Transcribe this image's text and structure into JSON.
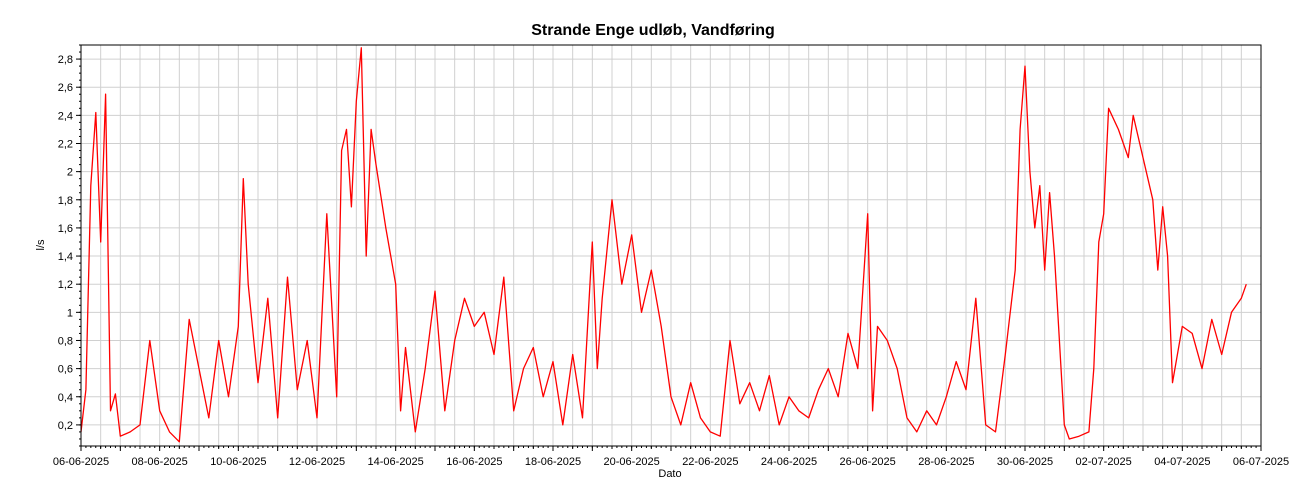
{
  "chart_data": {
    "type": "line",
    "title": "Strande Enge udløb, Vandføring",
    "xlabel": "Dato",
    "ylabel": "l/s",
    "ylim": [
      0.05,
      2.9
    ],
    "xlim": [
      "2025-06-06",
      "2025-07-06"
    ],
    "y_ticks": [
      "0,2",
      "0,4",
      "0,6",
      "0,8",
      "1",
      "1,2",
      "1,4",
      "1,6",
      "1,8",
      "2",
      "2,2",
      "2,4",
      "2,6",
      "2,8"
    ],
    "y_tick_values": [
      0.2,
      0.4,
      0.6,
      0.8,
      1.0,
      1.2,
      1.4,
      1.6,
      1.8,
      2.0,
      2.2,
      2.4,
      2.6,
      2.8
    ],
    "x_ticks": [
      "06-06-2025",
      "08-06-2025",
      "10-06-2025",
      "12-06-2025",
      "14-06-2025",
      "16-06-2025",
      "18-06-2025",
      "20-06-2025",
      "22-06-2025",
      "24-06-2025",
      "26-06-2025",
      "28-06-2025",
      "30-06-2025",
      "02-07-2025",
      "04-07-2025",
      "06-07-2025"
    ],
    "grid": true,
    "series": [
      {
        "color": "#ff0000",
        "points": [
          [
            "2025-06-06 00:00",
            0.15
          ],
          [
            "2025-06-06 03:00",
            0.45
          ],
          [
            "2025-06-06 06:00",
            1.9
          ],
          [
            "2025-06-06 09:00",
            2.42
          ],
          [
            "2025-06-06 12:00",
            1.5
          ],
          [
            "2025-06-06 15:00",
            2.55
          ],
          [
            "2025-06-06 18:00",
            0.3
          ],
          [
            "2025-06-06 21:00",
            0.42
          ],
          [
            "2025-06-07 00:00",
            0.12
          ],
          [
            "2025-06-07 06:00",
            0.15
          ],
          [
            "2025-06-07 12:00",
            0.2
          ],
          [
            "2025-06-07 18:00",
            0.8
          ],
          [
            "2025-06-08 00:00",
            0.3
          ],
          [
            "2025-06-08 06:00",
            0.15
          ],
          [
            "2025-06-08 12:00",
            0.08
          ],
          [
            "2025-06-08 18:00",
            0.95
          ],
          [
            "2025-06-09 00:00",
            0.6
          ],
          [
            "2025-06-09 06:00",
            0.25
          ],
          [
            "2025-06-09 12:00",
            0.8
          ],
          [
            "2025-06-09 18:00",
            0.4
          ],
          [
            "2025-06-10 00:00",
            0.9
          ],
          [
            "2025-06-10 03:00",
            1.95
          ],
          [
            "2025-06-10 06:00",
            1.2
          ],
          [
            "2025-06-10 12:00",
            0.5
          ],
          [
            "2025-06-10 18:00",
            1.1
          ],
          [
            "2025-06-11 00:00",
            0.25
          ],
          [
            "2025-06-11 06:00",
            1.25
          ],
          [
            "2025-06-11 12:00",
            0.45
          ],
          [
            "2025-06-11 18:00",
            0.8
          ],
          [
            "2025-06-12 00:00",
            0.25
          ],
          [
            "2025-06-12 06:00",
            1.7
          ],
          [
            "2025-06-12 12:00",
            0.4
          ],
          [
            "2025-06-12 15:00",
            2.15
          ],
          [
            "2025-06-12 18:00",
            2.3
          ],
          [
            "2025-06-12 21:00",
            1.75
          ],
          [
            "2025-06-13 00:00",
            2.5
          ],
          [
            "2025-06-13 03:00",
            2.88
          ],
          [
            "2025-06-13 06:00",
            1.4
          ],
          [
            "2025-06-13 09:00",
            2.3
          ],
          [
            "2025-06-13 12:00",
            2.05
          ],
          [
            "2025-06-13 18:00",
            1.6
          ],
          [
            "2025-06-14 00:00",
            1.2
          ],
          [
            "2025-06-14 03:00",
            0.3
          ],
          [
            "2025-06-14 06:00",
            0.75
          ],
          [
            "2025-06-14 12:00",
            0.15
          ],
          [
            "2025-06-14 18:00",
            0.6
          ],
          [
            "2025-06-15 00:00",
            1.15
          ],
          [
            "2025-06-15 06:00",
            0.3
          ],
          [
            "2025-06-15 12:00",
            0.8
          ],
          [
            "2025-06-15 18:00",
            1.1
          ],
          [
            "2025-06-16 00:00",
            0.9
          ],
          [
            "2025-06-16 06:00",
            1.0
          ],
          [
            "2025-06-16 12:00",
            0.7
          ],
          [
            "2025-06-16 18:00",
            1.25
          ],
          [
            "2025-06-17 00:00",
            0.3
          ],
          [
            "2025-06-17 06:00",
            0.6
          ],
          [
            "2025-06-17 12:00",
            0.75
          ],
          [
            "2025-06-17 18:00",
            0.4
          ],
          [
            "2025-06-18 00:00",
            0.65
          ],
          [
            "2025-06-18 06:00",
            0.2
          ],
          [
            "2025-06-18 12:00",
            0.7
          ],
          [
            "2025-06-18 18:00",
            0.25
          ],
          [
            "2025-06-19 00:00",
            1.5
          ],
          [
            "2025-06-19 03:00",
            0.6
          ],
          [
            "2025-06-19 06:00",
            1.1
          ],
          [
            "2025-06-19 12:00",
            1.8
          ],
          [
            "2025-06-19 18:00",
            1.2
          ],
          [
            "2025-06-20 00:00",
            1.55
          ],
          [
            "2025-06-20 06:00",
            1.0
          ],
          [
            "2025-06-20 12:00",
            1.3
          ],
          [
            "2025-06-20 18:00",
            0.9
          ],
          [
            "2025-06-21 00:00",
            0.4
          ],
          [
            "2025-06-21 06:00",
            0.2
          ],
          [
            "2025-06-21 12:00",
            0.5
          ],
          [
            "2025-06-21 18:00",
            0.25
          ],
          [
            "2025-06-22 00:00",
            0.15
          ],
          [
            "2025-06-22 06:00",
            0.12
          ],
          [
            "2025-06-22 12:00",
            0.8
          ],
          [
            "2025-06-22 18:00",
            0.35
          ],
          [
            "2025-06-23 00:00",
            0.5
          ],
          [
            "2025-06-23 06:00",
            0.3
          ],
          [
            "2025-06-23 12:00",
            0.55
          ],
          [
            "2025-06-23 18:00",
            0.2
          ],
          [
            "2025-06-24 00:00",
            0.4
          ],
          [
            "2025-06-24 06:00",
            0.3
          ],
          [
            "2025-06-24 12:00",
            0.25
          ],
          [
            "2025-06-24 18:00",
            0.45
          ],
          [
            "2025-06-25 00:00",
            0.6
          ],
          [
            "2025-06-25 06:00",
            0.4
          ],
          [
            "2025-06-25 12:00",
            0.85
          ],
          [
            "2025-06-25 18:00",
            0.6
          ],
          [
            "2025-06-26 00:00",
            1.7
          ],
          [
            "2025-06-26 03:00",
            0.3
          ],
          [
            "2025-06-26 06:00",
            0.9
          ],
          [
            "2025-06-26 12:00",
            0.8
          ],
          [
            "2025-06-26 18:00",
            0.6
          ],
          [
            "2025-06-27 00:00",
            0.25
          ],
          [
            "2025-06-27 06:00",
            0.15
          ],
          [
            "2025-06-27 12:00",
            0.3
          ],
          [
            "2025-06-27 18:00",
            0.2
          ],
          [
            "2025-06-28 00:00",
            0.4
          ],
          [
            "2025-06-28 06:00",
            0.65
          ],
          [
            "2025-06-28 12:00",
            0.45
          ],
          [
            "2025-06-28 18:00",
            1.1
          ],
          [
            "2025-06-29 00:00",
            0.2
          ],
          [
            "2025-06-29 06:00",
            0.15
          ],
          [
            "2025-06-29 12:00",
            0.7
          ],
          [
            "2025-06-29 18:00",
            1.3
          ],
          [
            "2025-06-29 21:00",
            2.3
          ],
          [
            "2025-06-30 00:00",
            2.75
          ],
          [
            "2025-06-30 03:00",
            2.0
          ],
          [
            "2025-06-30 06:00",
            1.6
          ],
          [
            "2025-06-30 09:00",
            1.9
          ],
          [
            "2025-06-30 12:00",
            1.3
          ],
          [
            "2025-06-30 15:00",
            1.85
          ],
          [
            "2025-06-30 18:00",
            1.4
          ],
          [
            "2025-07-01 00:00",
            0.2
          ],
          [
            "2025-07-01 03:00",
            0.1
          ],
          [
            "2025-07-01 09:00",
            0.12
          ],
          [
            "2025-07-01 15:00",
            0.15
          ],
          [
            "2025-07-01 18:00",
            0.6
          ],
          [
            "2025-07-01 21:00",
            1.5
          ],
          [
            "2025-07-02 00:00",
            1.7
          ],
          [
            "2025-07-02 03:00",
            2.45
          ],
          [
            "2025-07-02 09:00",
            2.3
          ],
          [
            "2025-07-02 15:00",
            2.1
          ],
          [
            "2025-07-02 18:00",
            2.4
          ],
          [
            "2025-07-03 00:00",
            2.1
          ],
          [
            "2025-07-03 06:00",
            1.8
          ],
          [
            "2025-07-03 09:00",
            1.3
          ],
          [
            "2025-07-03 12:00",
            1.75
          ],
          [
            "2025-07-03 15:00",
            1.4
          ],
          [
            "2025-07-03 18:00",
            0.5
          ],
          [
            "2025-07-04 00:00",
            0.9
          ],
          [
            "2025-07-04 06:00",
            0.85
          ],
          [
            "2025-07-04 12:00",
            0.6
          ],
          [
            "2025-07-04 18:00",
            0.95
          ],
          [
            "2025-07-05 00:00",
            0.7
          ],
          [
            "2025-07-05 06:00",
            1.0
          ],
          [
            "2025-07-05 12:00",
            1.1
          ],
          [
            "2025-07-05 15:00",
            1.2
          ]
        ]
      }
    ]
  }
}
